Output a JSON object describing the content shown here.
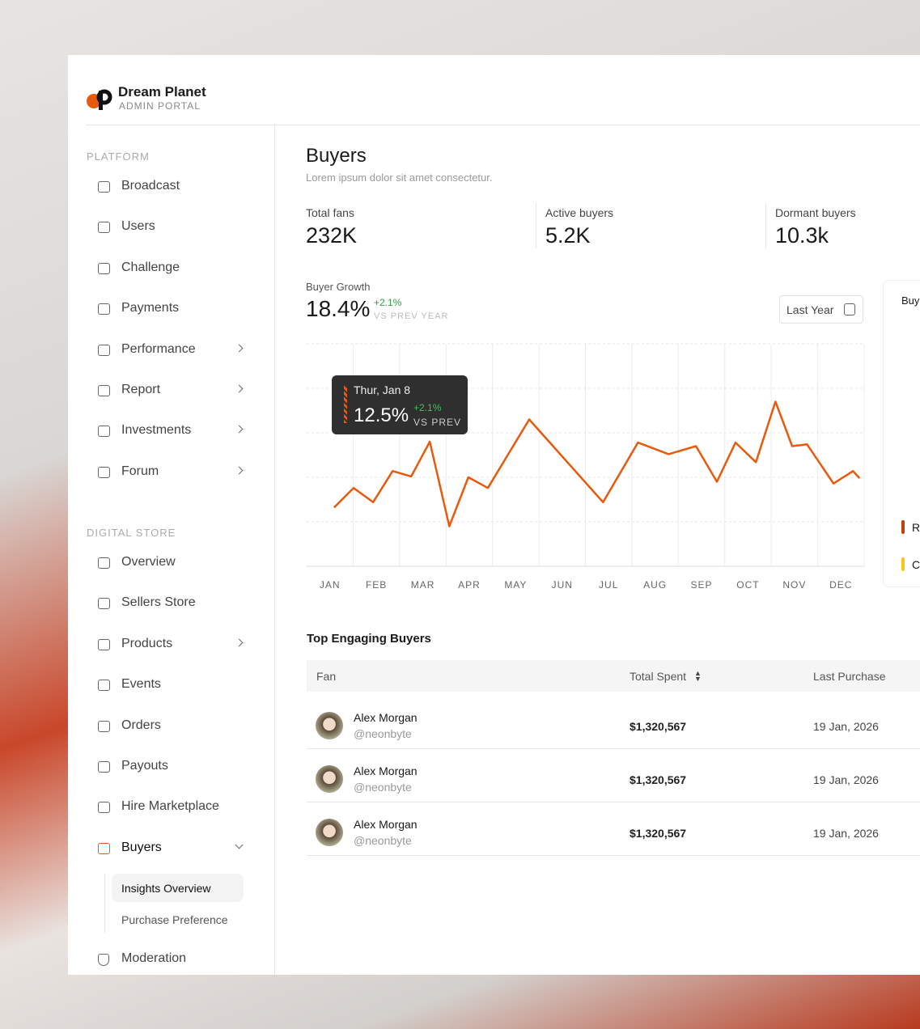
{
  "brand": {
    "name": "Dream Planet",
    "subtitle": "ADMIN PORTAL"
  },
  "nav": [
    {
      "title": "PLATFORM",
      "items": [
        "Broadcast",
        "Users",
        "Challenge",
        "Payments",
        "Performance",
        "Report",
        "Investments",
        "Forum"
      ]
    },
    {
      "title": "DIGITAL STORE",
      "items": [
        "Overview",
        "Sellers Store",
        "Products",
        "Events",
        "Orders",
        "Payouts",
        "Hire Marketplace",
        "Buyers"
      ]
    }
  ],
  "buyers_menu": [
    "Insights Overview",
    "Purchase Preference"
  ],
  "nav_bottom": "Moderation",
  "header": {
    "title": "Buyers",
    "subtitle": "Lorem ipsum dolor sit amet consectetur."
  },
  "stats": [
    {
      "label": "Total fans",
      "value": "232K"
    },
    {
      "label": "Active buyers",
      "value": "5.2K"
    },
    {
      "label": "Dormant buyers",
      "value": "10.3k"
    }
  ],
  "growth": {
    "label": "Buyer Growth",
    "value": "18.4%",
    "change": "+2.1%",
    "compare": "VS PREV YEAR",
    "period": "Last Year"
  },
  "tooltip": {
    "date": "Thur, Jan 8",
    "value": "12.5%",
    "change": "+2.1%",
    "compare": "VS PREV"
  },
  "chart_data": {
    "type": "line",
    "categories": [
      "JAN",
      "FEB",
      "MAR",
      "APR",
      "MAY",
      "JUN",
      "JUL",
      "AUG",
      "SEP",
      "OCT",
      "NOV",
      "DEC"
    ],
    "x": [
      0.59,
      1.01,
      1.43,
      1.85,
      2.25,
      2.65,
      3.07,
      3.48,
      3.9,
      4.79,
      6.38,
      7.13,
      7.79,
      8.38,
      8.83,
      9.23,
      9.67,
      10.09,
      10.45,
      10.77,
      11.34,
      11.76,
      11.9
    ],
    "values": [
      6.6,
      8.8,
      7.2,
      10.7,
      10.1,
      14.0,
      4.5,
      10.0,
      8.8,
      16.5,
      7.2,
      13.9,
      12.6,
      13.5,
      9.5,
      13.9,
      11.7,
      18.5,
      13.5,
      13.7,
      9.3,
      10.7,
      9.9
    ],
    "color": "#e8590c",
    "xlim": [
      0,
      12
    ],
    "ylim": [
      0,
      25
    ],
    "yticks": [
      0,
      5,
      10,
      15,
      20,
      25
    ],
    "grid": true
  },
  "side_card": {
    "title": "Buy",
    "legend": [
      "R",
      "C"
    ]
  },
  "table": {
    "title": "Top Engaging Buyers",
    "columns": [
      "Fan",
      "Total Spent",
      "Last Purchase"
    ],
    "rows": [
      [
        "Alex Morgan",
        "@neonbyte",
        "$1,320,567",
        "19 Jan, 2026"
      ],
      [
        "Alex Morgan",
        "@neonbyte",
        "$1,320,567",
        "19 Jan, 2026"
      ],
      [
        "Alex Morgan",
        "@neonbyte",
        "$1,320,567",
        "19 Jan, 2026"
      ]
    ]
  }
}
